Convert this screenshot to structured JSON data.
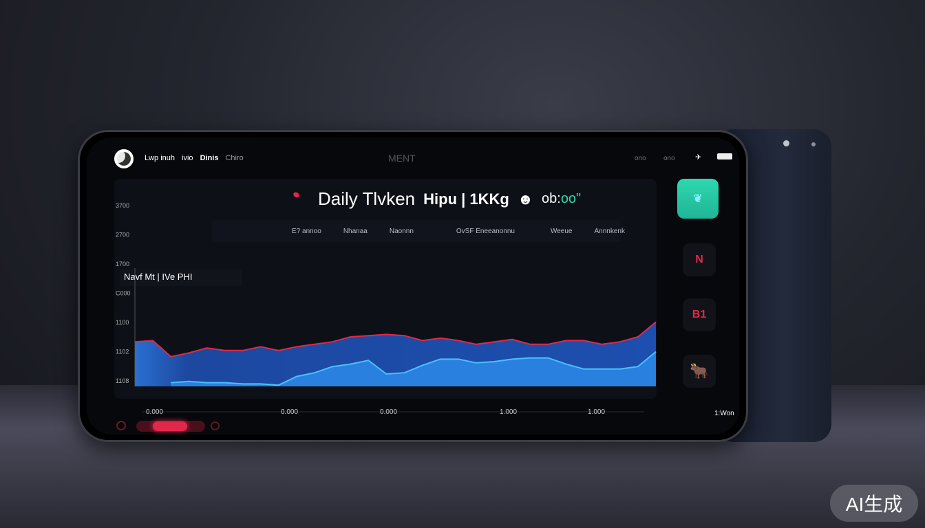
{
  "status_bar": {
    "items": [
      "Lwp inuh",
      "ivio",
      "Dinis",
      "Chiro"
    ],
    "center": "MENT",
    "right": [
      "ono",
      "ono"
    ]
  },
  "header": {
    "title": "Daily Tlvken",
    "title_extra": "Hipu | 1KKg",
    "value": "ob:",
    "value_accent": "oo\""
  },
  "columns": [
    "E? annoo",
    "Nhanaa",
    "Naonnn",
    "OvSF Eneeanonnu",
    "Weeue",
    "Annnkenk"
  ],
  "legend": "Navf Mt | IVe PHI",
  "sidebar": {
    "buttons": [
      {
        "icon": "leaf-icon",
        "color": "#2ed8b0"
      },
      {
        "icon": "chart-icon",
        "label": "N"
      },
      {
        "icon": "badge-icon",
        "label": "B1"
      },
      {
        "icon": "bull-icon"
      }
    ]
  },
  "footer_time": "1:Won",
  "badge": "AI生成",
  "colors": {
    "accent": "#2ed8b0",
    "red": "#e0294a",
    "upper_area": "#1f4fa8",
    "lower_area": "#2a80de"
  },
  "chart_data": {
    "type": "area",
    "y_ticks": [
      "3700",
      "2700",
      "1700",
      "C000",
      "1100",
      "1102",
      "1108"
    ],
    "x_ticks": [
      "0.000",
      "0.000",
      "0.000",
      "1.000",
      "1.000"
    ],
    "ylim": [
      0,
      100
    ],
    "series": [
      {
        "values": [
          36,
          37,
          24,
          27,
          31,
          29,
          29,
          32,
          29,
          32,
          34,
          36,
          40,
          41,
          42,
          41,
          37,
          39,
          37,
          34,
          36,
          38,
          34,
          34,
          37,
          37,
          34,
          36,
          40,
          52
        ]
      },
      {
        "values": [
          null,
          null,
          3,
          4,
          3,
          3,
          2,
          2,
          1,
          8,
          11,
          16,
          18,
          21,
          10,
          11,
          17,
          22,
          22,
          19,
          20,
          22,
          23,
          23,
          18,
          14,
          14,
          14,
          16,
          28
        ]
      }
    ]
  }
}
